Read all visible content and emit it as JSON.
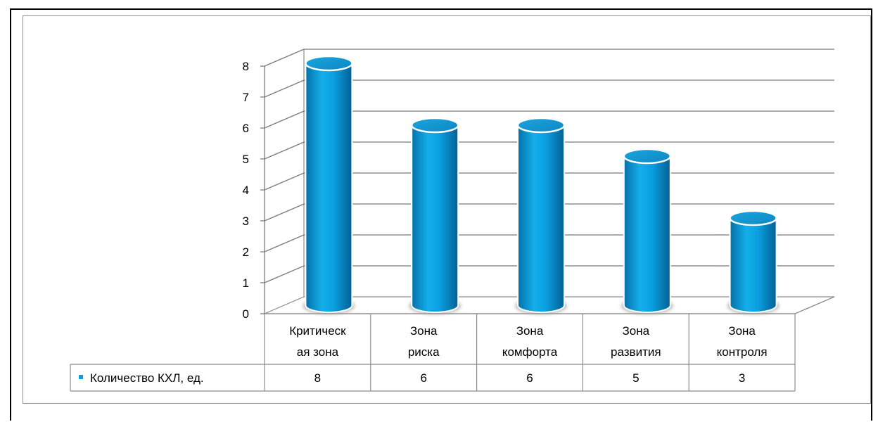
{
  "chart_data": {
    "type": "bar",
    "categories": [
      [
        "Критическ",
        "ая зона"
      ],
      [
        "Зона",
        "риска"
      ],
      [
        "Зона",
        "комфорта"
      ],
      [
        "Зона",
        "развития"
      ],
      [
        "Зона",
        "контроля"
      ]
    ],
    "series": [
      {
        "name": "Количество КХЛ, ед.",
        "values": [
          8,
          6,
          6,
          5,
          3
        ],
        "color": "#0aa0e0"
      }
    ],
    "value_labels": [
      "8",
      "6",
      "6",
      "5",
      "3"
    ],
    "y_ticks": [
      "0",
      "1",
      "2",
      "3",
      "4",
      "5",
      "6",
      "7",
      "8"
    ],
    "ylim": [
      0,
      8
    ],
    "grid": true,
    "legend": "data-table",
    "bar_style": "3d-cylinder"
  }
}
